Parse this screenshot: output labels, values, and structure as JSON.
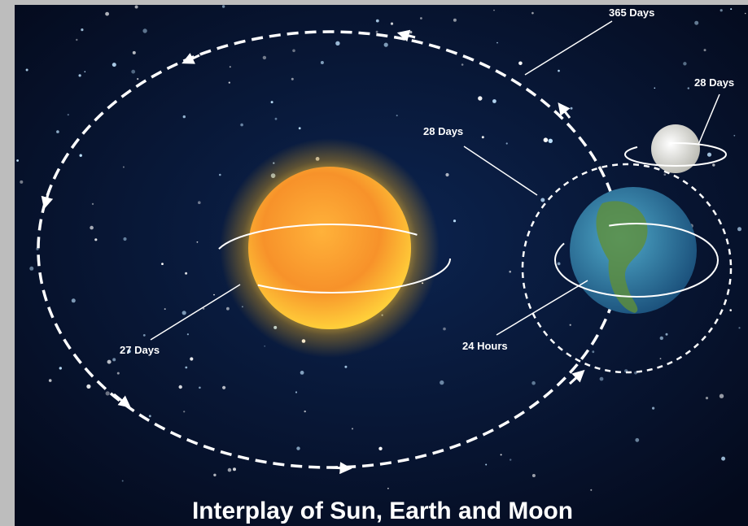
{
  "title": "Interplay of Sun, Earth and Moon",
  "labels": {
    "earth_orbit_sun": "365 Days",
    "moon_orbit": "28 Days",
    "moon_orbit_earth": "28 Days",
    "sun_rotation": "27 Days",
    "earth_rotation": "24 Hours"
  }
}
